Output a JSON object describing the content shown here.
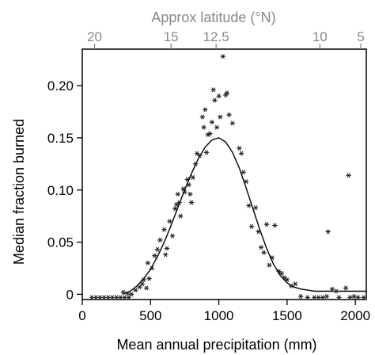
{
  "chart_data": {
    "type": "scatter",
    "xlabel": "Mean annual precipitation (mm)",
    "ylabel": "Median fraction burned",
    "top_axis_label": "Approx latitude (°N)",
    "xlim": [
      0,
      2080
    ],
    "ylim": [
      -0.005,
      0.235
    ],
    "x_ticks": [
      0,
      500,
      1000,
      1500,
      2000
    ],
    "y_ticks": [
      0,
      0.05,
      0.1,
      0.15,
      0.2
    ],
    "y_tick_labels": [
      "0",
      "0.05",
      "0.10",
      "0.15",
      "0.20"
    ],
    "top_ticks": [
      {
        "label": "20",
        "x": 90
      },
      {
        "label": "15",
        "x": 650
      },
      {
        "label": "12.5",
        "x": 980
      },
      {
        "label": "10",
        "x": 1740
      },
      {
        "label": "5",
        "x": 2040
      }
    ],
    "grid": false,
    "marker": "*",
    "colors": {
      "axis": "#000000",
      "top_axis": "#888888",
      "points": "#222222",
      "curve": "#000000"
    },
    "curve": {
      "name": "fitted curve",
      "x": [
        300,
        350,
        400,
        450,
        500,
        550,
        600,
        650,
        700,
        750,
        800,
        850,
        900,
        950,
        1000,
        1050,
        1100,
        1150,
        1200,
        1250,
        1300,
        1350,
        1400,
        1450,
        1500,
        1550,
        1600,
        1650,
        1700,
        1750,
        1800,
        1850,
        1900,
        1950,
        2000,
        2080
      ],
      "y": [
        0.0,
        0.003,
        0.008,
        0.015,
        0.024,
        0.036,
        0.05,
        0.066,
        0.083,
        0.1,
        0.116,
        0.13,
        0.141,
        0.148,
        0.15,
        0.146,
        0.136,
        0.121,
        0.102,
        0.082,
        0.062,
        0.044,
        0.029,
        0.018,
        0.011,
        0.007,
        0.005,
        0.004,
        0.003,
        0.003,
        0.003,
        0.003,
        0.003,
        0.003,
        0.003,
        0.003
      ]
    },
    "points": [
      [
        70,
        -0.003
      ],
      [
        100,
        -0.003
      ],
      [
        130,
        -0.003
      ],
      [
        160,
        -0.003
      ],
      [
        190,
        -0.003
      ],
      [
        220,
        -0.003
      ],
      [
        250,
        -0.003
      ],
      [
        280,
        -0.003
      ],
      [
        310,
        -0.003
      ],
      [
        340,
        -0.003
      ],
      [
        300,
        0.002
      ],
      [
        330,
        0.001
      ],
      [
        360,
        0.0
      ],
      [
        390,
        0.004
      ],
      [
        420,
        0.007
      ],
      [
        440,
        0.01
      ],
      [
        470,
        0.006
      ],
      [
        490,
        0.015
      ],
      [
        450,
        0.014
      ],
      [
        480,
        0.03
      ],
      [
        510,
        0.025
      ],
      [
        530,
        0.037
      ],
      [
        550,
        0.043
      ],
      [
        570,
        0.052
      ],
      [
        600,
        0.062
      ],
      [
        610,
        0.038
      ],
      [
        620,
        0.044
      ],
      [
        640,
        0.07
      ],
      [
        660,
        0.056
      ],
      [
        680,
        0.082
      ],
      [
        690,
        0.086
      ],
      [
        700,
        0.096
      ],
      [
        710,
        0.088
      ],
      [
        720,
        0.075
      ],
      [
        740,
        0.101
      ],
      [
        750,
        0.098
      ],
      [
        770,
        0.11
      ],
      [
        780,
        0.105
      ],
      [
        790,
        0.096
      ],
      [
        800,
        0.088
      ],
      [
        810,
        0.112
      ],
      [
        830,
        0.125
      ],
      [
        840,
        0.135
      ],
      [
        860,
        0.133
      ],
      [
        880,
        0.17
      ],
      [
        890,
        0.16
      ],
      [
        900,
        0.177
      ],
      [
        910,
        0.136
      ],
      [
        920,
        0.153
      ],
      [
        935,
        0.154
      ],
      [
        950,
        0.165
      ],
      [
        960,
        0.196
      ],
      [
        970,
        0.186
      ],
      [
        985,
        0.16
      ],
      [
        1000,
        0.19
      ],
      [
        1010,
        0.17
      ],
      [
        1030,
        0.228
      ],
      [
        1050,
        0.191
      ],
      [
        1060,
        0.193
      ],
      [
        1075,
        0.172
      ],
      [
        1100,
        0.164
      ],
      [
        1150,
        0.14
      ],
      [
        1165,
        0.135
      ],
      [
        1180,
        0.117
      ],
      [
        1200,
        0.108
      ],
      [
        1220,
        0.085
      ],
      [
        1240,
        0.065
      ],
      [
        1270,
        0.083
      ],
      [
        1290,
        0.06
      ],
      [
        1310,
        0.045
      ],
      [
        1330,
        0.04
      ],
      [
        1350,
        0.067
      ],
      [
        1370,
        0.028
      ],
      [
        1390,
        0.035
      ],
      [
        1410,
        0.066
      ],
      [
        1440,
        0.022
      ],
      [
        1460,
        0.02
      ],
      [
        1480,
        0.016
      ],
      [
        1500,
        0.014
      ],
      [
        1530,
        0.008
      ],
      [
        1560,
        0.01
      ],
      [
        1600,
        -0.002
      ],
      [
        1650,
        -0.003
      ],
      [
        1700,
        -0.003
      ],
      [
        1730,
        -0.003
      ],
      [
        1760,
        -0.003
      ],
      [
        1790,
        -0.002
      ],
      [
        1800,
        0.06
      ],
      [
        1830,
        0.005
      ],
      [
        1860,
        0.003
      ],
      [
        1880,
        -0.003
      ],
      [
        1930,
        0.006
      ],
      [
        1950,
        0.114
      ],
      [
        1960,
        -0.003
      ],
      [
        1990,
        -0.002
      ],
      [
        2020,
        -0.003
      ],
      [
        2060,
        -0.003
      ]
    ]
  }
}
